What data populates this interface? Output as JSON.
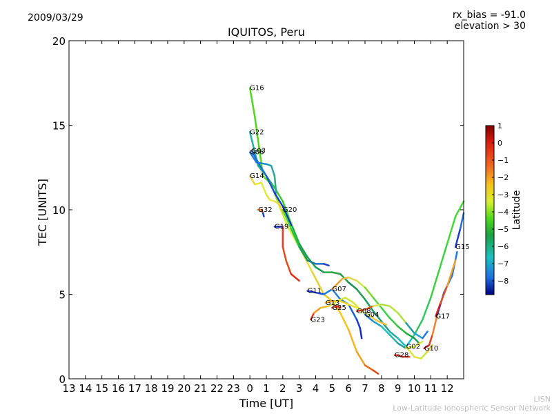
{
  "header": {
    "date": "2009/03/29",
    "rx_bias": "rx_bias = -91.0",
    "elevation": "elevation > 30"
  },
  "footer": {
    "line1": "LISN",
    "line2": "Low-Latitude Ionospheric Sensor Network"
  },
  "colorbar": {
    "label": "Latitude",
    "ticks": [
      "1",
      "0",
      "−1",
      "−2",
      "−3",
      "−4",
      "−5",
      "−6",
      "−7",
      "−8"
    ]
  },
  "chart_data": {
    "type": "line",
    "title": "IQUITOS, Peru",
    "xlabel": "Time [UT]",
    "ylabel": "TEC [UNITS]",
    "ylim": [
      0,
      20
    ],
    "xlim": [
      13,
      37
    ],
    "x_tick_labels": [
      "13",
      "14",
      "15",
      "16",
      "17",
      "18",
      "19",
      "20",
      "21",
      "22",
      "23",
      "0",
      "1",
      "2",
      "3",
      "4",
      "5",
      "6",
      "7",
      "8",
      "9",
      "10",
      "11",
      "12"
    ],
    "y_tick_labels": [
      "0",
      "5",
      "10",
      "15",
      "20"
    ],
    "series": [
      {
        "name": "G16",
        "points": [
          [
            24.0,
            17.2
          ],
          [
            24.3,
            15.5
          ],
          [
            24.8,
            12.0
          ],
          [
            25.3,
            11.5
          ],
          [
            25.8,
            10.2
          ],
          [
            26.3,
            9.0
          ],
          [
            27.0,
            7.8
          ],
          [
            27.8,
            6.3
          ],
          [
            28.5,
            5.0
          ],
          [
            29.0,
            4.6
          ],
          [
            29.5,
            3.9
          ],
          [
            30.0,
            2.9
          ],
          [
            30.5,
            1.6
          ],
          [
            31.0,
            0.8
          ],
          [
            31.5,
            0.5
          ],
          [
            31.8,
            0.3
          ]
        ],
        "colors": [
          "#4fd81b",
          "#4fd81b",
          "#55e01c",
          "#9ae61c",
          "#c8ef2a",
          "#dcf034",
          "#e6e23a",
          "#e7d032",
          "#f2c417",
          "#f5c220",
          "#f7c51e",
          "#f6b520",
          "#f0a020",
          "#e86a18",
          "#e04414",
          "#d21e12"
        ]
      },
      {
        "name": "G22",
        "points": [
          [
            24.0,
            14.6
          ],
          [
            24.5,
            12.6
          ],
          [
            25.0,
            12.0
          ],
          [
            25.5,
            11.3
          ],
          [
            26.0,
            10.5
          ],
          [
            26.5,
            9.2
          ],
          [
            27.0,
            8.0
          ],
          [
            27.5,
            7.2
          ],
          [
            28.0,
            6.6
          ],
          [
            28.5,
            6.3
          ],
          [
            29.0,
            6.3
          ],
          [
            29.5,
            6.2
          ],
          [
            30.0,
            5.7
          ],
          [
            30.5,
            5.3
          ],
          [
            31.0,
            4.7
          ],
          [
            31.5,
            4.0
          ],
          [
            32.0,
            3.4
          ],
          [
            32.5,
            2.8
          ],
          [
            33.0,
            2.4
          ],
          [
            33.5,
            1.9
          ],
          [
            34.0,
            2.6
          ],
          [
            34.5,
            3.5
          ],
          [
            35.0,
            4.8
          ],
          [
            35.5,
            6.4
          ],
          [
            36.0,
            8.0
          ],
          [
            36.5,
            9.6
          ],
          [
            37.0,
            10.5
          ]
        ],
        "colors": [
          "#1fb0a6",
          "#1fb080",
          "#25c050",
          "#36cb2e",
          "#36cb2e",
          "#1cb23d",
          "#1aa046",
          "#1e9a4a",
          "#1a9850",
          "#2aa84a",
          "#2aa040",
          "#1d9c47",
          "#1a9050",
          "#1e9a50",
          "#1a9c5e",
          "#1a9c70",
          "#1ea090",
          "#1eb0a8",
          "#22b8c0",
          "#1ec0c8",
          "#33c060",
          "#33c860",
          "#3bd040",
          "#3bd040",
          "#44d838",
          "#44d838",
          "#44d838"
        ]
      },
      {
        "name": "G06",
        "points": [
          [
            24.0,
            13.4
          ],
          [
            24.4,
            12.8
          ],
          [
            25.0,
            12.7
          ],
          [
            25.3,
            12.6
          ],
          [
            25.5,
            12.0
          ],
          [
            25.6,
            11.0
          ]
        ],
        "colors": [
          "#1d7fd3",
          "#1d82d0",
          "#1e9ab8",
          "#27a8a0",
          "#2aa882",
          "#2aa070"
        ]
      },
      {
        "name": "G03",
        "points": [
          [
            24.1,
            13.5
          ],
          [
            24.5,
            12.8
          ],
          [
            25.0,
            12.0
          ],
          [
            25.5,
            11.0
          ],
          [
            26.0,
            10.2
          ],
          [
            26.5,
            9.1
          ]
        ],
        "colors": [
          "#1e6ee0",
          "#1e6ee0",
          "#1d50e0",
          "#1d3ad8",
          "#1b28c8",
          "#1020b0"
        ]
      },
      {
        "name": "G14",
        "points": [
          [
            24.0,
            12.0
          ],
          [
            24.3,
            11.5
          ],
          [
            24.7,
            11.6
          ],
          [
            25.0,
            10.9
          ],
          [
            25.2,
            10.6
          ],
          [
            25.5,
            10.5
          ],
          [
            25.8,
            10.3
          ],
          [
            26.0,
            9.8
          ]
        ],
        "colors": [
          "#efd335",
          "#e4e63a",
          "#d8ee38",
          "#e4e63a",
          "#eeea48",
          "#eedd42",
          "#f0cc3a",
          "#e6c840"
        ]
      },
      {
        "name": "G32",
        "points": [
          [
            24.5,
            10.0
          ],
          [
            24.7,
            10.0
          ],
          [
            24.8,
            9.8
          ],
          [
            24.85,
            9.6
          ]
        ],
        "colors": [
          "#f08020",
          "#e05020",
          "#2040c0",
          "#1020a0"
        ]
      },
      {
        "name": "G19",
        "points": [
          [
            25.5,
            9.0
          ],
          [
            26.0,
            9.0
          ],
          [
            26.0,
            7.8
          ],
          [
            26.2,
            7.0
          ],
          [
            26.5,
            6.2
          ],
          [
            27.0,
            5.8
          ]
        ],
        "colors": [
          "#1a2fc4",
          "#e04020",
          "#e04a1a",
          "#e24a18",
          "#d83018",
          "#d22212"
        ]
      },
      {
        "name": "G20",
        "points": [
          [
            26.0,
            10.0
          ],
          [
            26.5,
            8.9
          ],
          [
            27.0,
            7.8
          ],
          [
            27.5,
            7.0
          ],
          [
            28.0,
            6.8
          ],
          [
            28.5,
            6.8
          ],
          [
            28.8,
            6.7
          ]
        ],
        "colors": [
          "#44d838",
          "#2dc048",
          "#1a9c5e",
          "#1a8090",
          "#1e6ed0",
          "#2040c8",
          "#1a28b8"
        ]
      },
      {
        "name": "G11",
        "points": [
          [
            27.5,
            5.2
          ],
          [
            28.0,
            5.1
          ],
          [
            28.5,
            5.0
          ],
          [
            29.0,
            5.3
          ],
          [
            29.5,
            4.7
          ],
          [
            30.0,
            4.4
          ],
          [
            30.5,
            3.5
          ],
          [
            30.7,
            3.0
          ],
          [
            30.8,
            2.4
          ]
        ],
        "colors": [
          "#1d3ad8",
          "#1d50e0",
          "#1e7ae0",
          "#1e7ae0",
          "#1e7ae0",
          "#1a62d8",
          "#1a3ad0",
          "#1a28b8",
          "#1020a0"
        ]
      },
      {
        "name": "G13",
        "points": [
          [
            28.6,
            4.5
          ],
          [
            29.0,
            4.6
          ],
          [
            29.5,
            4.6
          ],
          [
            30.0,
            4.4
          ],
          [
            30.5,
            4.2
          ]
        ],
        "colors": [
          "#f8b028",
          "#f5c220",
          "#f7d620",
          "#ecdf2c",
          "#d8e828"
        ]
      },
      {
        "name": "G25",
        "points": [
          [
            29.0,
            4.2
          ],
          [
            29.3,
            4.3
          ],
          [
            29.5,
            4.2
          ]
        ],
        "colors": [
          "#e04020",
          "#d82020",
          "#e04020"
        ]
      },
      {
        "name": "G07",
        "points": [
          [
            29.0,
            5.3
          ],
          [
            29.3,
            5.6
          ],
          [
            29.6,
            5.9
          ],
          [
            30.0,
            6.0
          ],
          [
            30.5,
            5.8
          ],
          [
            31.0,
            5.4
          ],
          [
            31.5,
            4.8
          ],
          [
            32.0,
            4.2
          ],
          [
            32.5,
            3.6
          ],
          [
            33.0,
            3.1
          ],
          [
            33.5,
            2.7
          ],
          [
            34.0,
            2.4
          ],
          [
            34.3,
            2.1
          ]
        ],
        "colors": [
          "#f0a030",
          "#f0a030",
          "#f2b840",
          "#e2d44a",
          "#cfe84a",
          "#7ed82a",
          "#5ad040",
          "#3cd040",
          "#3cc840",
          "#2cb840",
          "#1ea840",
          "#1e9a50",
          "#1a9c5e"
        ]
      },
      {
        "name": "G23",
        "points": [
          [
            27.7,
            3.5
          ],
          [
            27.9,
            3.9
          ],
          [
            28.3,
            4.2
          ],
          [
            28.8,
            4.3
          ],
          [
            29.3,
            4.6
          ],
          [
            29.8,
            4.8
          ],
          [
            30.3,
            4.5
          ],
          [
            30.8,
            4.0
          ],
          [
            31.3,
            3.7
          ],
          [
            31.8,
            3.4
          ],
          [
            32.3,
            3.2
          ]
        ],
        "colors": [
          "#e03a1a",
          "#f39a20",
          "#f0be28",
          "#e6da38",
          "#dfe23a",
          "#c7ea3a",
          "#d8e838",
          "#e6e238",
          "#f0cc40",
          "#f0c040",
          "#e0d83a"
        ]
      },
      {
        "name": "G08",
        "points": [
          [
            30.5,
            4.0
          ],
          [
            31.0,
            4.1
          ],
          [
            31.5,
            4.3
          ],
          [
            32.0,
            4.4
          ],
          [
            32.5,
            4.3
          ],
          [
            33.0,
            3.9
          ],
          [
            33.5,
            3.3
          ],
          [
            34.0,
            2.7
          ],
          [
            34.5,
            2.4
          ],
          [
            34.8,
            2.8
          ]
        ],
        "colors": [
          "#e04020",
          "#e05a20",
          "#cfe84a",
          "#aee03e",
          "#b8e43e",
          "#b0e044",
          "#1e9a9a",
          "#1ea0c8",
          "#1e7ae0",
          "#1a3ad0"
        ]
      },
      {
        "name": "G04",
        "points": [
          [
            31.0,
            3.8
          ],
          [
            31.5,
            3.4
          ],
          [
            32.0,
            3.1
          ],
          [
            32.5,
            2.6
          ],
          [
            33.0,
            2.1
          ],
          [
            33.5,
            1.8
          ],
          [
            34.0,
            1.9
          ],
          [
            34.5,
            2.2
          ]
        ],
        "colors": [
          "#1e7ae0",
          "#1ea0c8",
          "#1ec0c0",
          "#22b8a8",
          "#1ea09a",
          "#d8e838",
          "#d8e838",
          "#c8e838"
        ]
      },
      {
        "name": "G28",
        "points": [
          [
            32.8,
            1.4
          ],
          [
            33.0,
            1.4
          ],
          [
            33.3,
            1.3
          ],
          [
            33.7,
            1.3
          ]
        ],
        "colors": [
          "#e04020",
          "#d82020",
          "#e04020",
          "#e05020"
        ]
      },
      {
        "name": "G02",
        "points": [
          [
            33.5,
            1.9
          ],
          [
            34.0,
            1.3
          ],
          [
            34.4,
            1.2
          ],
          [
            34.8,
            1.6
          ],
          [
            35.1,
            2.0
          ]
        ],
        "colors": [
          "#dfe23a",
          "#dfe23a",
          "#c8e838",
          "#e0c838",
          "#e0a030"
        ]
      },
      {
        "name": "G10",
        "points": [
          [
            34.6,
            1.8
          ],
          [
            34.9,
            2.0
          ],
          [
            35.1,
            2.6
          ],
          [
            35.4,
            3.8
          ],
          [
            35.8,
            5.1
          ],
          [
            36.3,
            6.1
          ],
          [
            36.6,
            7.5
          ]
        ],
        "colors": [
          "#d02020",
          "#e04020",
          "#f08030",
          "#1a3ad0",
          "#1e7ae0",
          "#1e7ae0",
          "#1a3ad0"
        ]
      },
      {
        "name": "G17",
        "points": [
          [
            35.3,
            3.7
          ],
          [
            35.6,
            4.5
          ],
          [
            36.0,
            5.5
          ],
          [
            36.5,
            7.0
          ]
        ],
        "colors": [
          "#d02020",
          "#e05020",
          "#f0a030",
          "#f0b030"
        ]
      },
      {
        "name": "G15",
        "points": [
          [
            36.5,
            7.8
          ],
          [
            36.8,
            8.9
          ],
          [
            37.0,
            9.8
          ]
        ],
        "colors": [
          "#1a3ad0",
          "#1e6ed0",
          "#2040c8"
        ]
      }
    ]
  }
}
